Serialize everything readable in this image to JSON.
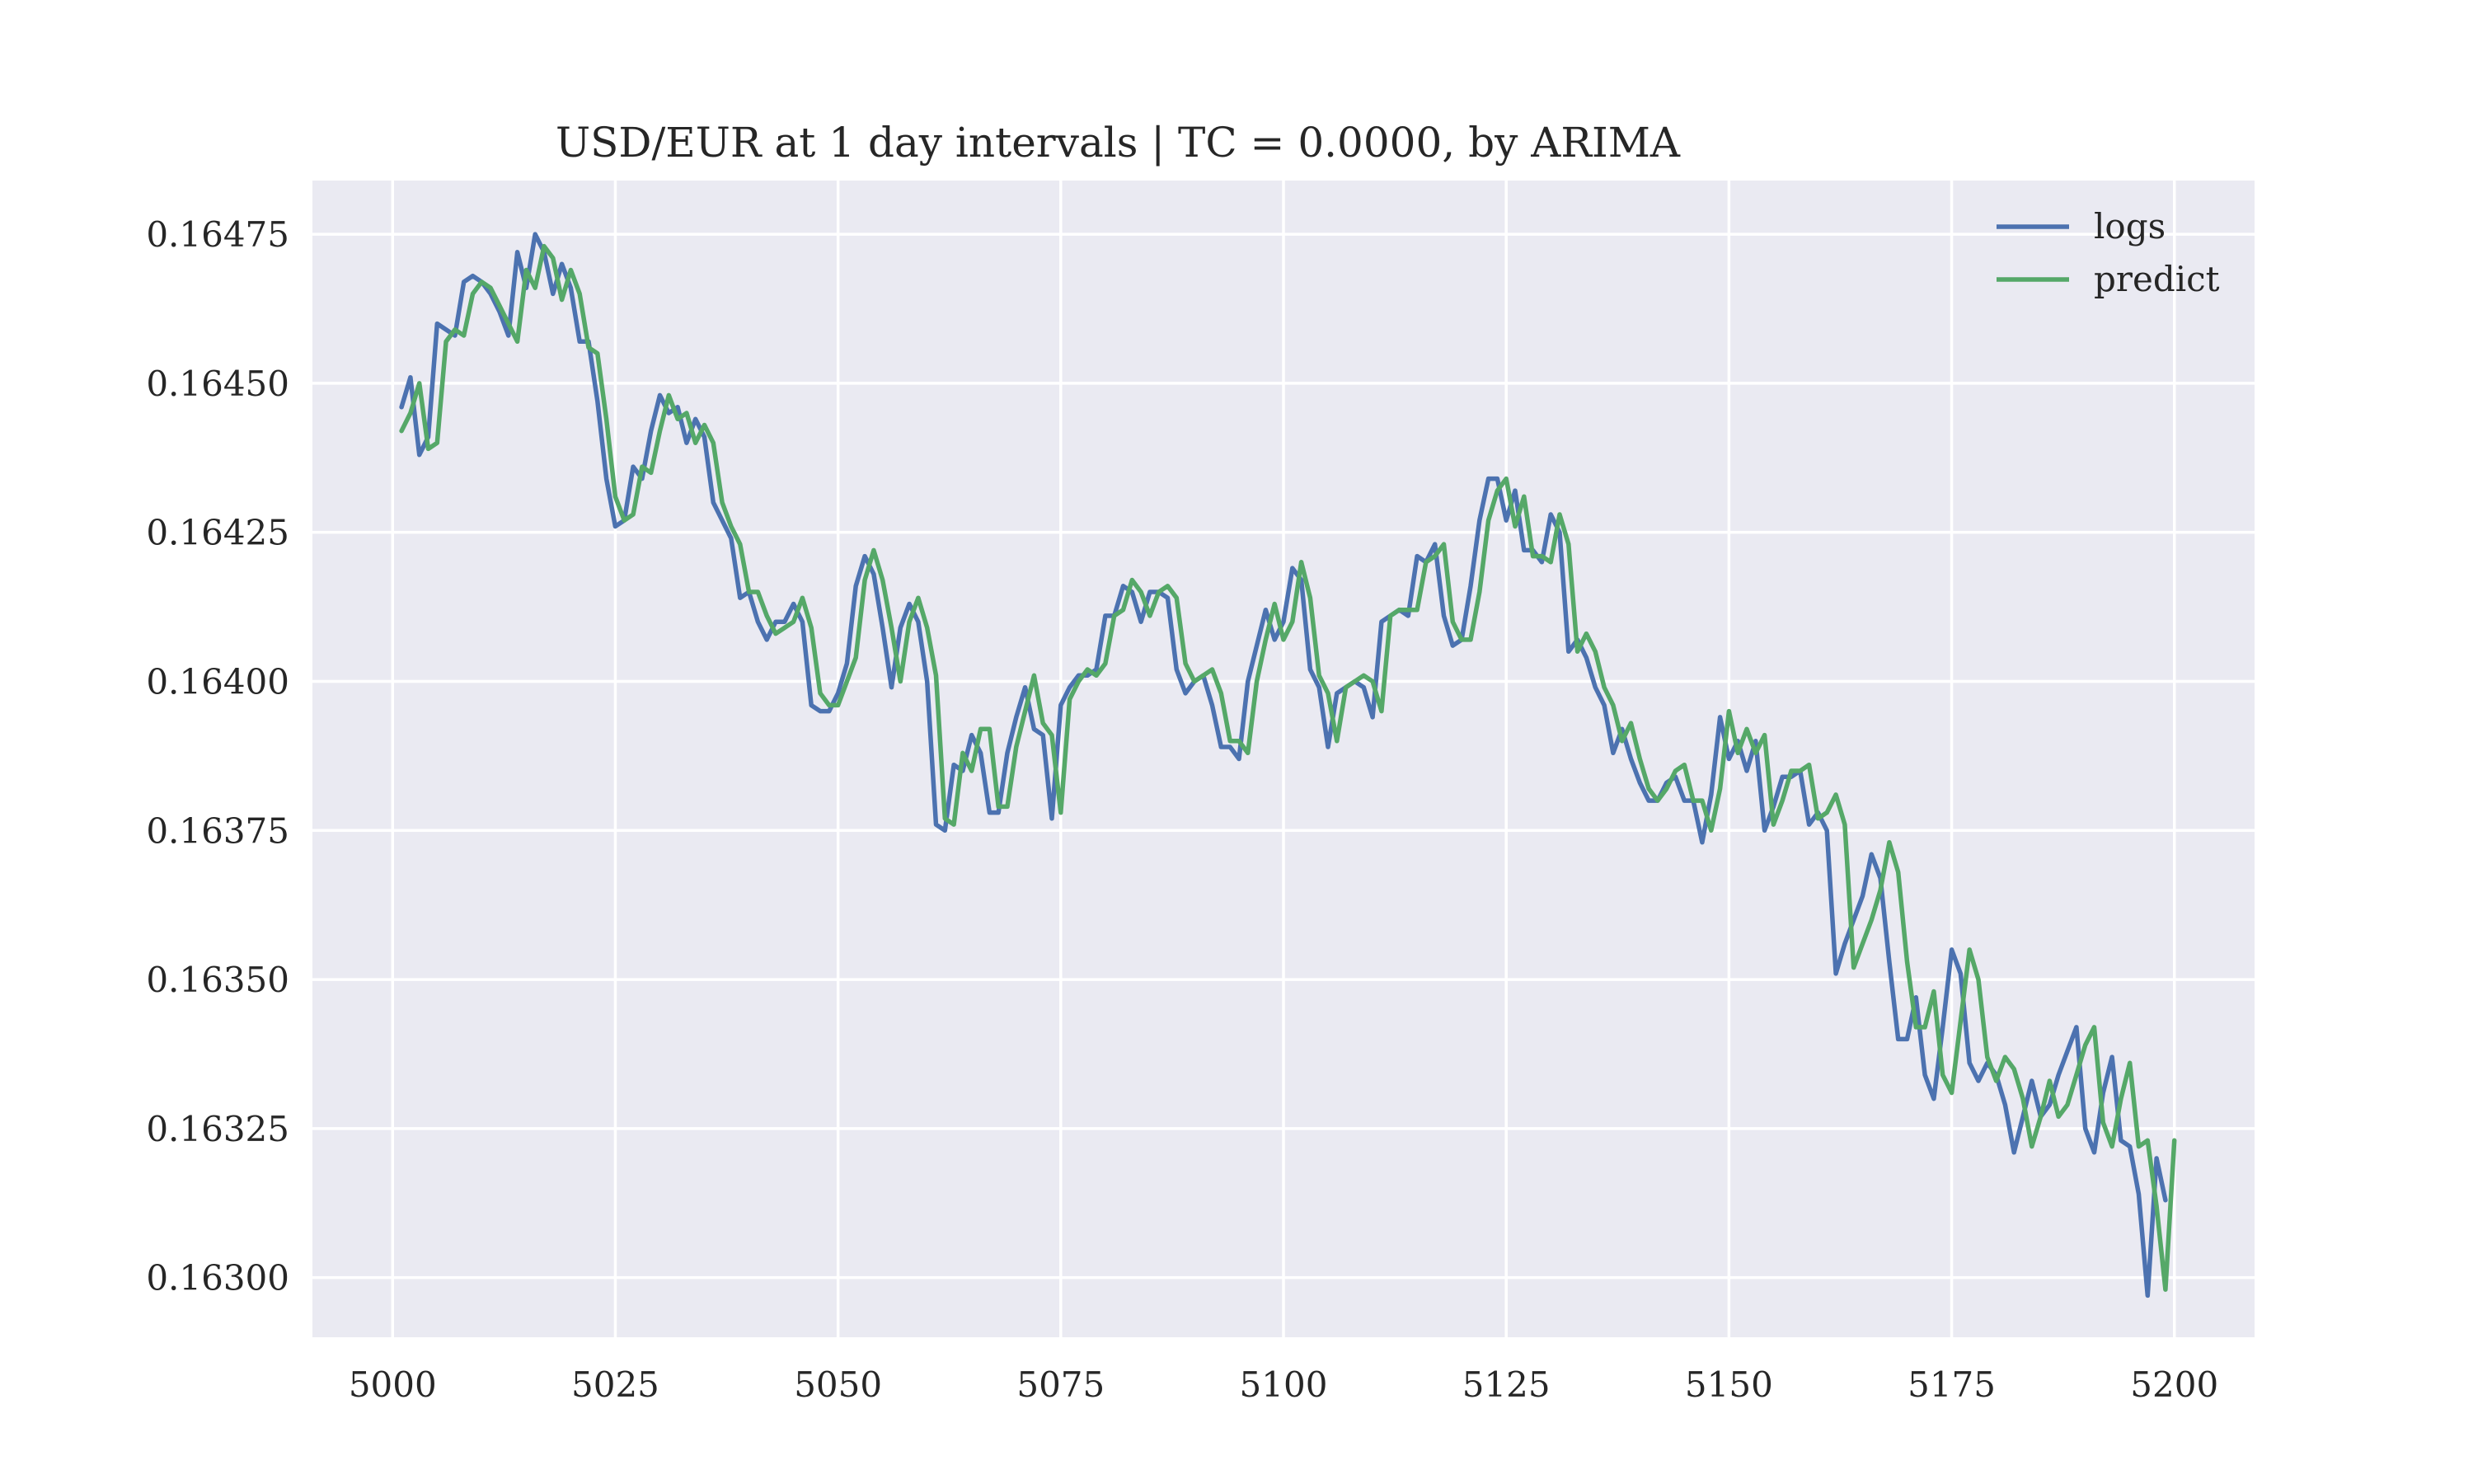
{
  "chart_data": {
    "type": "line",
    "title": "USD/EUR at 1 day intervals | TC = 0.0000, by ARIMA",
    "xlabel": "",
    "ylabel": "",
    "xlim": [
      4991,
      5209
    ],
    "ylim": [
      0.1629,
      0.16484
    ],
    "x_ticks": [
      5000,
      5025,
      5050,
      5075,
      5100,
      5125,
      5150,
      5175,
      5200
    ],
    "y_ticks": [
      0.163,
      0.16325,
      0.1635,
      0.16375,
      0.164,
      0.16425,
      0.1645,
      0.16475
    ],
    "x_tick_labels": [
      "5000",
      "5025",
      "5050",
      "5075",
      "5100",
      "5125",
      "5150",
      "5175",
      "5200"
    ],
    "y_tick_labels": [
      "0.16300",
      "0.16325",
      "0.16350",
      "0.16375",
      "0.16400",
      "0.16425",
      "0.16450",
      "0.16475"
    ],
    "grid": true,
    "legend_position": "top-right",
    "background": "#eaeaf2",
    "x_start": 5001,
    "series": [
      {
        "name": "logs",
        "color": "#4c72b0",
        "values": [
          0.16446,
          0.16451,
          0.16438,
          0.16441,
          0.1646,
          0.16459,
          0.16458,
          0.16467,
          0.16468,
          0.16467,
          0.16465,
          0.16462,
          0.16458,
          0.16472,
          0.16466,
          0.16475,
          0.16472,
          0.16465,
          0.1647,
          0.16466,
          0.16457,
          0.16457,
          0.16447,
          0.16434,
          0.16426,
          0.16427,
          0.16436,
          0.16434,
          0.16442,
          0.16448,
          0.16445,
          0.16446,
          0.1644,
          0.16444,
          0.16441,
          0.1643,
          0.16427,
          0.16424,
          0.16414,
          0.16415,
          0.1641,
          0.16407,
          0.1641,
          0.1641,
          0.16413,
          0.1641,
          0.16396,
          0.16395,
          0.16395,
          0.16398,
          0.16403,
          0.16416,
          0.16421,
          0.16418,
          0.16409,
          0.16399,
          0.16409,
          0.16413,
          0.1641,
          0.164,
          0.16376,
          0.16375,
          0.16386,
          0.16385,
          0.16391,
          0.16388,
          0.16378,
          0.16378,
          0.16388,
          0.16394,
          0.16399,
          0.16392,
          0.16391,
          0.16377,
          0.16396,
          0.16399,
          0.16401,
          0.16401,
          0.16402,
          0.16411,
          0.16411,
          0.16416,
          0.16415,
          0.1641,
          0.16415,
          0.16415,
          0.16414,
          0.16402,
          0.16398,
          0.164,
          0.16401,
          0.16396,
          0.16389,
          0.16389,
          0.16387,
          0.164,
          0.16406,
          0.16412,
          0.16407,
          0.1641,
          0.16419,
          0.16417,
          0.16402,
          0.16399,
          0.16389,
          0.16398,
          0.16399,
          0.164,
          0.16399,
          0.16394,
          0.1641,
          0.16411,
          0.16412,
          0.16411,
          0.16421,
          0.1642,
          0.16423,
          0.16411,
          0.16406,
          0.16407,
          0.16416,
          0.16427,
          0.16434,
          0.16434,
          0.16427,
          0.16432,
          0.16422,
          0.16422,
          0.1642,
          0.16428,
          0.16425,
          0.16405,
          0.16407,
          0.16404,
          0.16399,
          0.16396,
          0.16388,
          0.16392,
          0.16387,
          0.16383,
          0.1638,
          0.1638,
          0.16383,
          0.16384,
          0.1638,
          0.1638,
          0.16373,
          0.16381,
          0.16394,
          0.16387,
          0.1639,
          0.16385,
          0.1639,
          0.16375,
          0.16379,
          0.16384,
          0.16384,
          0.16385,
          0.16376,
          0.16378,
          0.16375,
          0.16351,
          0.16356,
          0.1636,
          0.16364,
          0.16371,
          0.16367,
          0.16353,
          0.1634,
          0.1634,
          0.16347,
          0.16334,
          0.1633,
          0.16342,
          0.16355,
          0.16351,
          0.16336,
          0.16333,
          0.16336,
          0.16334,
          0.16329,
          0.16321,
          0.16327,
          0.16333,
          0.16327,
          0.16329,
          0.16334,
          0.16338,
          0.16342,
          0.16325,
          0.16321,
          0.16331,
          0.16337,
          0.16323,
          0.16322,
          0.16314,
          0.16297,
          0.1632,
          0.16313
        ]
      },
      {
        "name": "predict",
        "color": "#55a868",
        "values": [
          0.16442,
          0.16445,
          0.1645,
          0.16439,
          0.1644,
          0.16457,
          0.16459,
          0.16458,
          0.16465,
          0.16467,
          0.16466,
          0.16463,
          0.1646,
          0.16457,
          0.16469,
          0.16466,
          0.16473,
          0.16471,
          0.16464,
          0.16469,
          0.16465,
          0.16456,
          0.16455,
          0.16444,
          0.16431,
          0.16427,
          0.16428,
          0.16436,
          0.16435,
          0.16442,
          0.16448,
          0.16444,
          0.16445,
          0.1644,
          0.16443,
          0.1644,
          0.1643,
          0.16426,
          0.16423,
          0.16415,
          0.16415,
          0.16411,
          0.16408,
          0.16409,
          0.1641,
          0.16414,
          0.16409,
          0.16398,
          0.16396,
          0.16396,
          0.164,
          0.16404,
          0.16417,
          0.16422,
          0.16417,
          0.16409,
          0.164,
          0.1641,
          0.16414,
          0.16409,
          0.16401,
          0.16377,
          0.16376,
          0.16388,
          0.16385,
          0.16392,
          0.16392,
          0.16379,
          0.16379,
          0.16389,
          0.16395,
          0.16401,
          0.16393,
          0.16391,
          0.16378,
          0.16397,
          0.164,
          0.16402,
          0.16401,
          0.16403,
          0.16411,
          0.16412,
          0.16417,
          0.16415,
          0.16411,
          0.16415,
          0.16416,
          0.16414,
          0.16403,
          0.164,
          0.16401,
          0.16402,
          0.16398,
          0.1639,
          0.1639,
          0.16388,
          0.164,
          0.16407,
          0.16413,
          0.16407,
          0.1641,
          0.1642,
          0.16414,
          0.16401,
          0.16398,
          0.1639,
          0.16399,
          0.164,
          0.16401,
          0.164,
          0.16395,
          0.16411,
          0.16412,
          0.16412,
          0.16412,
          0.1642,
          0.16421,
          0.16423,
          0.1641,
          0.16407,
          0.16407,
          0.16415,
          0.16427,
          0.16432,
          0.16434,
          0.16426,
          0.16431,
          0.16421,
          0.16421,
          0.1642,
          0.16428,
          0.16423,
          0.16405,
          0.16408,
          0.16405,
          0.16399,
          0.16396,
          0.1639,
          0.16393,
          0.16387,
          0.16382,
          0.1638,
          0.16382,
          0.16385,
          0.16386,
          0.1638,
          0.1638,
          0.16375,
          0.16382,
          0.16395,
          0.16388,
          0.16392,
          0.16388,
          0.16391,
          0.16376,
          0.1638,
          0.16385,
          0.16385,
          0.16386,
          0.16377,
          0.16378,
          0.16381,
          0.16376,
          0.16352,
          0.16356,
          0.1636,
          0.16365,
          0.16373,
          0.16368,
          0.16353,
          0.16342,
          0.16342,
          0.16348,
          0.16334,
          0.16331,
          0.16343,
          0.16355,
          0.1635,
          0.16337,
          0.16333,
          0.16337,
          0.16335,
          0.1633,
          0.16322,
          0.16327,
          0.16333,
          0.16327,
          0.16329,
          0.16334,
          0.16339,
          0.16342,
          0.16326,
          0.16322,
          0.1633,
          0.16336,
          0.16322,
          0.16323,
          0.16312,
          0.16298,
          0.16323
        ]
      }
    ]
  }
}
